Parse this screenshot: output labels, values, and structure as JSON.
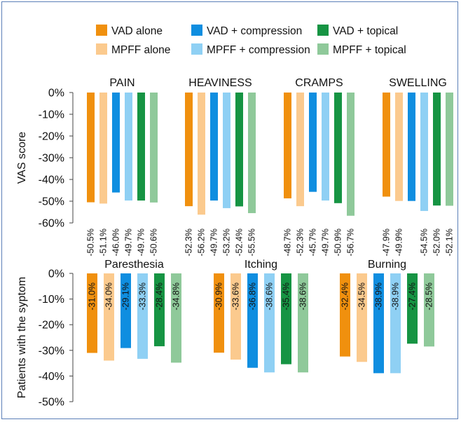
{
  "colors": {
    "VAD alone": "#f0900e",
    "MPFF alone": "#fbca8e",
    "VAD + compression": "#0f8ee0",
    "MPFF + compression": "#8fd0f4",
    "VAD + topical": "#169443",
    "MPFF + topical": "#8fc99a",
    "frame": "#5b7fb8"
  },
  "legend": {
    "items": [
      "VAD alone",
      "VAD + compression",
      "VAD + topical",
      "MPFF alone",
      "MPFF + compression",
      "MPFF + topical"
    ]
  },
  "chart_data": [
    {
      "type": "bar",
      "ylabel": "VAS score",
      "ylim": [
        -60,
        0
      ],
      "yticks": [
        "0%",
        "-10%",
        "-20%",
        "-30%",
        "-40%",
        "-50%",
        "-60%"
      ],
      "series_names": [
        "VAD alone",
        "MPFF alone",
        "VAD + compression",
        "MPFF + compression",
        "VAD + topical",
        "MPFF + topical"
      ],
      "groups": [
        {
          "name": "PAIN",
          "values": [
            -50.5,
            -51.1,
            -46.0,
            -49.7,
            -49.7,
            -50.6
          ],
          "labels": [
            "-50.5%",
            "-51.1%",
            "-46.0%",
            "-49.7%",
            "-49.7%",
            "-50.6%"
          ]
        },
        {
          "name": "HEAVINESS",
          "values": [
            -52.3,
            -56.2,
            -49.7,
            -53.2,
            -52.4,
            -55.5
          ],
          "labels": [
            "-52.3%",
            "-56.2%",
            "-49.7%",
            "-53.2%",
            "-52.4%",
            "-55.5%"
          ]
        },
        {
          "name": "CRAMPS",
          "values": [
            -48.7,
            -52.3,
            -45.7,
            -49.7,
            -50.9,
            -56.7
          ],
          "labels": [
            "-48.7%",
            "-52.3%",
            "-45.7%",
            "-49.7%",
            "-50.9%",
            "-56.7%"
          ]
        },
        {
          "name": "SWELLING",
          "values": [
            -47.9,
            -49.9,
            -49.9,
            -54.5,
            -52.0,
            -52.1
          ],
          "labels": [
            "-47.9%",
            "-49.9%",
            "",
            "-54.5%",
            "-52.0%",
            "-52.1%"
          ]
        }
      ]
    },
    {
      "type": "bar",
      "ylabel": "Patients with the syptom",
      "ylim": [
        -50,
        0
      ],
      "yticks": [
        "0%",
        "-10%",
        "-20%",
        "-30%",
        "-40%",
        "-50%"
      ],
      "series_names": [
        "VAD alone",
        "MPFF alone",
        "VAD + compression",
        "MPFF + compression",
        "VAD + topical",
        "MPFF + topical"
      ],
      "groups": [
        {
          "name": "Paresthesia",
          "values": [
            -31.0,
            -34.0,
            -29.1,
            -33.3,
            -28.4,
            -34.8
          ],
          "labels": [
            "-31.0%",
            "-34.0%",
            "-29.1%",
            "-33.3%",
            "-28.4%",
            "-34.8%"
          ]
        },
        {
          "name": "Itching",
          "values": [
            -30.9,
            -33.6,
            -36.8,
            -38.6,
            -35.4,
            -38.6
          ],
          "labels": [
            "-30.9%",
            "-33.6%",
            "-36.8%",
            "-38.6%",
            "-35.4%",
            "-38.6%"
          ]
        },
        {
          "name": "Burning",
          "values": [
            -32.4,
            -34.5,
            -38.9,
            -38.9,
            -27.4,
            -28.5
          ],
          "labels": [
            "-32.4%",
            "-34.5%",
            "-38.9%",
            "-38.9%",
            "-27.4%",
            "-28.5%"
          ]
        }
      ]
    }
  ]
}
